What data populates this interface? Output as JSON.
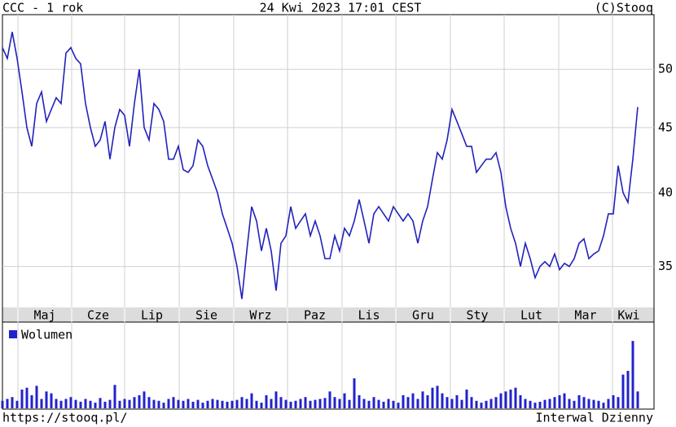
{
  "page": {
    "header_left": "CCC - 1 rok",
    "header_center": "24 Kwi 2023 17:01 CEST",
    "header_right": "(C)Stooq",
    "footer_left": "https://stooq.pl/",
    "footer_right": "Interwal Dzienny"
  },
  "chart_data": [
    {
      "type": "line",
      "log_scale": true,
      "grid": true,
      "xlim": [
        0,
        130
      ],
      "ylim": [
        32.5,
        55.2
      ],
      "yticks": [
        35,
        40,
        45,
        50
      ],
      "xticks": [
        {
          "value": 3.17,
          "label": "Maj"
        },
        {
          "value": 14.17,
          "label": "Cze"
        },
        {
          "value": 25,
          "label": "Lip"
        },
        {
          "value": 36.17,
          "label": "Sie"
        },
        {
          "value": 47.33,
          "label": "Wrz"
        },
        {
          "value": 58.33,
          "label": "Paz"
        },
        {
          "value": 69.5,
          "label": "Lis"
        },
        {
          "value": 80.5,
          "label": "Gru"
        },
        {
          "value": 91.67,
          "label": "Sty"
        },
        {
          "value": 102.67,
          "label": "Lut"
        },
        {
          "value": 113.83,
          "label": "Mar"
        },
        {
          "value": 124.83,
          "label": "Kwi"
        }
      ],
      "series": [
        {
          "color": "#2222bb",
          "values": [
            52,
            51,
            53.5,
            51,
            48,
            45,
            43.5,
            47,
            48,
            45.5,
            46.5,
            47.5,
            47,
            51.5,
            52,
            51,
            50.5,
            47,
            45,
            43.5,
            44,
            45.5,
            42.5,
            45,
            46.5,
            46,
            43.5,
            47,
            50,
            45,
            44,
            47,
            46.5,
            45.5,
            42.5,
            42.5,
            43.5,
            41.7,
            41.5,
            42,
            44,
            43.5,
            42,
            41,
            40,
            38.5,
            37.5,
            36.5,
            35,
            33,
            36,
            39,
            38,
            36,
            37.5,
            36,
            33.5,
            36.5,
            37,
            39,
            37.5,
            38,
            38.5,
            37,
            38,
            37,
            35.5,
            35.5,
            37,
            36,
            37.5,
            37,
            38,
            39.5,
            38,
            36.5,
            38.5,
            39,
            38.5,
            38,
            39,
            38.5,
            38,
            38.5,
            38,
            36.5,
            38,
            39,
            41,
            43,
            42.5,
            44,
            46.5,
            45.5,
            44.5,
            43.5,
            43.5,
            41.5,
            42,
            42.5,
            42.5,
            43,
            41.5,
            39,
            37.5,
            36.5,
            35,
            36.5,
            35.5,
            34.3,
            35,
            35.3,
            35,
            35.8,
            34.8,
            35.2,
            35,
            35.5,
            36.5,
            36.8,
            35.5,
            35.8,
            36,
            37,
            38.5,
            38.5,
            42,
            40,
            39.3,
            42.5,
            46.7
          ]
        }
      ]
    },
    {
      "type": "bar",
      "xlim": [
        0,
        130
      ],
      "ylim": [
        0,
        80
      ],
      "legend": "top-left",
      "series": [
        {
          "name": "Wolumen",
          "color": "#2222cc",
          "values": [
            8,
            10,
            12,
            8,
            20,
            22,
            14,
            24,
            10,
            18,
            16,
            10,
            8,
            10,
            12,
            9,
            7,
            10,
            8,
            6,
            11,
            7,
            9,
            25,
            8,
            10,
            9,
            12,
            14,
            18,
            12,
            9,
            8,
            6,
            10,
            12,
            9,
            8,
            10,
            7,
            9,
            6,
            8,
            10,
            9,
            8,
            7,
            8,
            9,
            12,
            10,
            16,
            8,
            6,
            14,
            10,
            18,
            12,
            9,
            7,
            8,
            10,
            12,
            8,
            9,
            10,
            11,
            18,
            12,
            10,
            16,
            9,
            32,
            14,
            10,
            8,
            12,
            9,
            7,
            10,
            8,
            6,
            14,
            12,
            16,
            10,
            18,
            14,
            22,
            24,
            16,
            12,
            10,
            14,
            9,
            20,
            12,
            8,
            6,
            8,
            10,
            12,
            16,
            18,
            20,
            22,
            14,
            10,
            8,
            6,
            7,
            9,
            10,
            12,
            14,
            16,
            10,
            8,
            14,
            12,
            10,
            9,
            8,
            6,
            10,
            14,
            12,
            36,
            40,
            72,
            18
          ]
        }
      ]
    }
  ]
}
